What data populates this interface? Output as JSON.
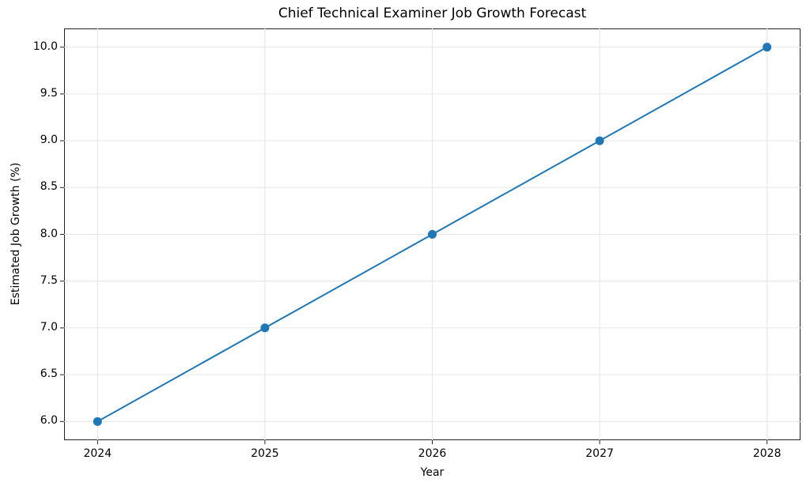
{
  "chart_data": {
    "type": "line",
    "title": "Chief Technical Examiner Job Growth Forecast",
    "xlabel": "Year",
    "ylabel": "Estimated Job Growth (%)",
    "categories": [
      "2024",
      "2025",
      "2026",
      "2027",
      "2028"
    ],
    "x": [
      2024,
      2025,
      2026,
      2027,
      2028
    ],
    "values": [
      6.0,
      7.0,
      8.0,
      9.0,
      10.0
    ],
    "series": [
      {
        "name": "Estimated Job Growth (%)",
        "color": "#1f77b4",
        "marker": "circle",
        "values": [
          6.0,
          7.0,
          8.0,
          9.0,
          10.0
        ]
      }
    ],
    "yticks": [
      "6.0",
      "6.5",
      "7.0",
      "7.5",
      "8.0",
      "8.5",
      "9.0",
      "9.5",
      "10.0"
    ],
    "xticks": [
      "2024",
      "2025",
      "2026",
      "2027",
      "2028"
    ],
    "ylim": [
      5.8,
      10.2
    ],
    "xlim": [
      2023.8,
      2028.2
    ],
    "grid": true,
    "legend": null
  }
}
